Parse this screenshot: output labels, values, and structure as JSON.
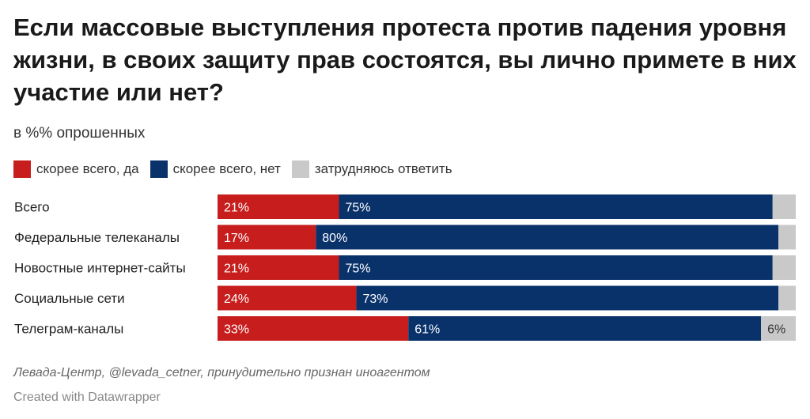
{
  "title": "Если массовые выступления протеста против падения уровня жизни, в своих защиту прав состоятся, вы лично примете в них участие или нет?",
  "subtitle": "в %% опрошенных",
  "colors": {
    "yes": "#c71e1d",
    "no": "#09326b",
    "unsure": "#c9c9c9"
  },
  "chart_data": {
    "type": "bar",
    "orientation": "horizontal",
    "stacked": true,
    "title": "Если массовые выступления протеста против падения уровня жизни, в своих защиту прав состоятся, вы лично примете в них участие или нет?",
    "subtitle": "в %% опрошенных",
    "categories": [
      "Всего",
      "Федеральные телеканалы",
      "Новостные интернет-сайты",
      "Социальные сети",
      "Телеграм-каналы"
    ],
    "series": [
      {
        "name": "скорее всего, да",
        "color": "#c71e1d",
        "values": [
          21,
          17,
          21,
          24,
          33
        ],
        "labels": [
          "21%",
          "17%",
          "21%",
          "24%",
          "33%"
        ]
      },
      {
        "name": "скорее всего, нет",
        "color": "#09326b",
        "values": [
          75,
          80,
          75,
          73,
          61
        ],
        "labels": [
          "75%",
          "80%",
          "75%",
          "73%",
          "61%"
        ]
      },
      {
        "name": "затрудняюсь ответить",
        "color": "#c9c9c9",
        "values": [
          4,
          3,
          4,
          3,
          6
        ],
        "labels": [
          "",
          "",
          "",
          "",
          "6%"
        ]
      }
    ],
    "xlim": [
      0,
      100
    ],
    "legend_position": "top-left"
  },
  "footer": {
    "source": "Левада-Центр, @levada_cetner, принудительно признан иноагентом",
    "credit": "Created with Datawrapper"
  }
}
